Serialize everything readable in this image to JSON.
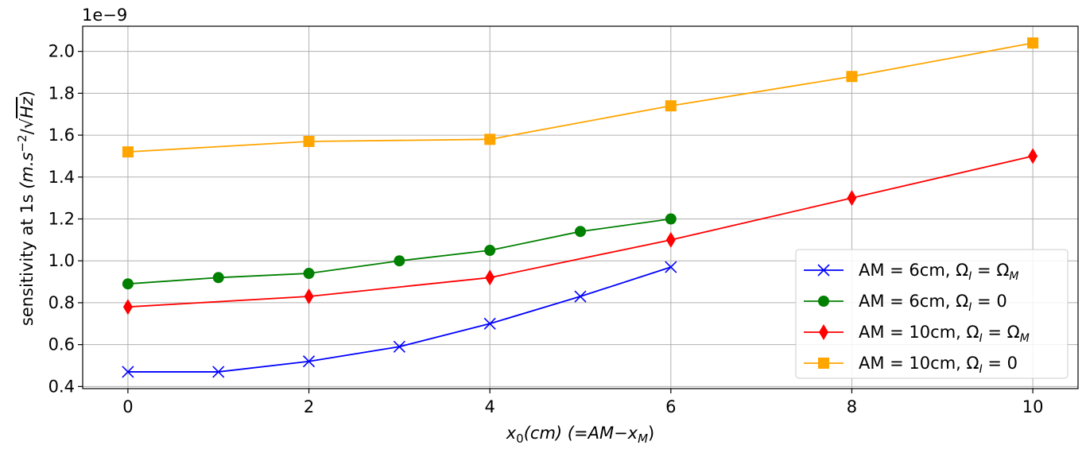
{
  "chart_data": {
    "type": "line",
    "title": "",
    "xlabel": "x_0(cm) (=AM - x_M)",
    "xlabel_parts": {
      "sym": "x",
      "sub": "0",
      "unit": "(cm) (",
      "eq": "=AM−x",
      "sub2": "M",
      "close": ")"
    },
    "ylabel": "sensitivity at 1s (m.s^-2/√Hz)",
    "ylabel_parts": {
      "text": "sensitivity at 1s ",
      "unit": "(m.s",
      "exp": "−2",
      "root": "/√",
      "hz": "Hz",
      "close": ")"
    },
    "y_offset_label": "1e−9",
    "xlim": [
      -0.5,
      10.5
    ],
    "ylim": [
      0.39,
      2.12
    ],
    "xticks": [
      0,
      2,
      4,
      6,
      8,
      10
    ],
    "xtick_labels": [
      "0",
      "2",
      "4",
      "6",
      "8",
      "10"
    ],
    "yticks": [
      0.4,
      0.6,
      0.8,
      1.0,
      1.2,
      1.4,
      1.6,
      1.8,
      2.0
    ],
    "ytick_labels": [
      "0.4",
      "0.6",
      "0.8",
      "1.0",
      "1.2",
      "1.4",
      "1.6",
      "1.8",
      "2.0"
    ],
    "grid": true,
    "legend_position": "lower-right",
    "series": [
      {
        "name": "AM = 6cm, Ω_I = Ω_M",
        "label_prefix": "AM = 6cm, ",
        "sub": "I",
        "rhs": "M",
        "rhs_type": "omega",
        "color": "#0000ff",
        "marker": "x",
        "x": [
          0,
          1,
          2,
          3,
          4,
          5,
          6
        ],
        "y": [
          0.47,
          0.47,
          0.52,
          0.59,
          0.7,
          0.83,
          0.97
        ]
      },
      {
        "name": "AM = 6cm, Ω_I = 0",
        "label_prefix": "AM = 6cm, ",
        "sub": "I",
        "rhs": "0",
        "rhs_type": "zero",
        "color": "#008000",
        "marker": "circle",
        "x": [
          0,
          1,
          2,
          3,
          4,
          5,
          6
        ],
        "y": [
          0.89,
          0.92,
          0.94,
          1.0,
          1.05,
          1.14,
          1.2
        ]
      },
      {
        "name": "AM = 10cm, Ω_I = Ω_M",
        "label_prefix": "AM = 10cm, ",
        "sub": "I",
        "rhs": "M",
        "rhs_type": "omega",
        "color": "#ff0000",
        "marker": "thin_diamond",
        "x": [
          0,
          2,
          4,
          6,
          8,
          10
        ],
        "y": [
          0.78,
          0.83,
          0.92,
          1.1,
          1.3,
          1.5
        ]
      },
      {
        "name": "AM = 10cm, Ω_I = 0",
        "label_prefix": "AM = 10cm, ",
        "sub": "I",
        "rhs": "0",
        "rhs_type": "zero",
        "color": "#ffa500",
        "marker": "square",
        "x": [
          0,
          2,
          4,
          6,
          8,
          10
        ],
        "y": [
          1.52,
          1.57,
          1.58,
          1.74,
          1.88,
          2.04
        ]
      }
    ]
  }
}
